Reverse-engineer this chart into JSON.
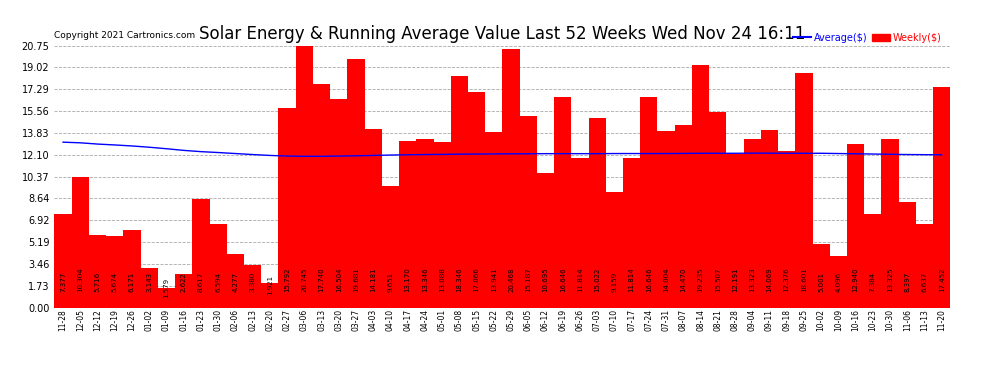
{
  "title": "Solar Energy & Running Average Value Last 52 Weeks Wed Nov 24 16:11",
  "copyright": "Copyright 2021 Cartronics.com",
  "categories": [
    "11-28",
    "12-05",
    "12-12",
    "12-19",
    "12-26",
    "01-02",
    "01-09",
    "01-16",
    "01-23",
    "01-30",
    "02-06",
    "02-13",
    "02-20",
    "02-27",
    "03-06",
    "03-13",
    "03-20",
    "03-27",
    "04-03",
    "04-10",
    "04-17",
    "04-24",
    "05-01",
    "05-08",
    "05-15",
    "05-22",
    "05-29",
    "06-05",
    "06-12",
    "06-19",
    "06-26",
    "07-03",
    "07-10",
    "07-17",
    "07-24",
    "07-31",
    "08-07",
    "08-14",
    "08-21",
    "08-28",
    "09-04",
    "09-11",
    "09-18",
    "09-25",
    "10-02",
    "10-09",
    "10-16",
    "10-23",
    "10-30",
    "11-06",
    "11-13",
    "11-20"
  ],
  "weekly_values": [
    7.377,
    10.304,
    5.716,
    5.674,
    6.171,
    3.143,
    1.579,
    2.622,
    8.617,
    6.594,
    4.277,
    3.38,
    1.921,
    15.792,
    20.745,
    17.74,
    16.504,
    19.681,
    14.181,
    9.651,
    13.17,
    13.346,
    13.088,
    18.346,
    17.066,
    13.941,
    20.468,
    15.187,
    10.695,
    16.646,
    11.814,
    15.022,
    9.159,
    11.814,
    16.646,
    14.004,
    14.47,
    19.235,
    15.507,
    12.191,
    13.323,
    14.069,
    12.376,
    18.601,
    5.001,
    4.096,
    12.94,
    7.384,
    13.325,
    8.397,
    6.637,
    17.452
  ],
  "average_values": [
    13.1,
    13.05,
    12.95,
    12.88,
    12.8,
    12.7,
    12.58,
    12.45,
    12.35,
    12.28,
    12.2,
    12.12,
    12.05,
    12.0,
    11.98,
    11.98,
    12.0,
    12.02,
    12.05,
    12.08,
    12.1,
    12.12,
    12.13,
    12.15,
    12.16,
    12.17,
    12.18,
    12.18,
    12.19,
    12.19,
    12.19,
    12.19,
    12.2,
    12.2,
    12.2,
    12.2,
    12.21,
    12.22,
    12.22,
    12.22,
    12.23,
    12.23,
    12.22,
    12.22,
    12.22,
    12.2,
    12.18,
    12.16,
    12.14,
    12.12,
    12.11,
    12.1
  ],
  "bar_color": "#ff0000",
  "line_color": "#0000ff",
  "background_color": "#ffffff",
  "grid_color": "#aaaaaa",
  "title_fontsize": 12,
  "copyright_fontsize": 6.5,
  "value_fontsize": 5.0,
  "xtick_fontsize": 5.5,
  "ytick_fontsize": 7,
  "ytick_labels": [
    "0.00",
    "1.73",
    "3.46",
    "5.19",
    "6.92",
    "8.64",
    "10.37",
    "12.10",
    "13.83",
    "15.56",
    "17.29",
    "19.02",
    "20.75"
  ],
  "ytick_values": [
    0.0,
    1.73,
    3.46,
    5.19,
    6.92,
    8.64,
    10.37,
    12.1,
    13.83,
    15.56,
    17.29,
    19.02,
    20.75
  ],
  "legend_avg_color": "#0000ff",
  "legend_weekly_color": "#ff0000",
  "legend_avg_label": "Average($)",
  "legend_weekly_label": "Weekly($)",
  "ymax": 20.75,
  "ymin": 0.0
}
